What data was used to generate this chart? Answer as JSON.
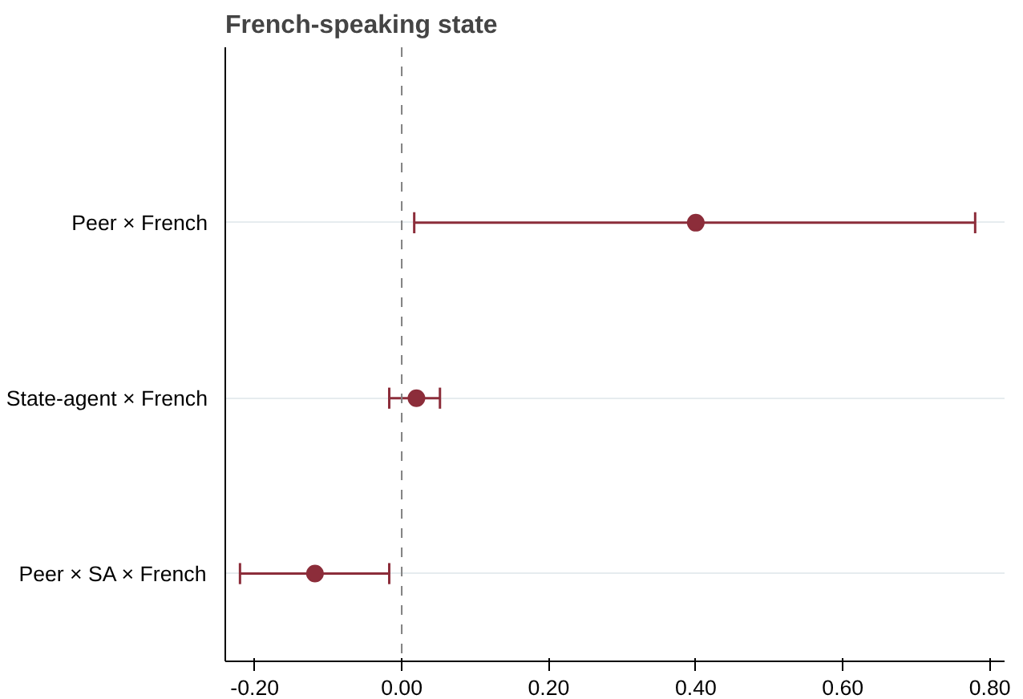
{
  "chart_data": {
    "type": "scatter",
    "orientation": "horizontal",
    "title": "French-speaking state",
    "categories": [
      "Peer × French",
      "State-agent × French",
      "Peer × SA × French"
    ],
    "series": [
      {
        "color": "#8c2d3a",
        "values": [
          0.4,
          0.02,
          -0.118
        ],
        "errors": [
          [
            0.017,
            0.78
          ],
          [
            -0.017,
            0.052
          ],
          [
            -0.22,
            -0.017
          ]
        ]
      }
    ],
    "xlim": [
      -0.24,
      0.82
    ],
    "xticks": [
      {
        "value": -0.2,
        "label": "-0.20"
      },
      {
        "value": 0,
        "label": "0.00"
      },
      {
        "value": 0.2,
        "label": "0.20"
      },
      {
        "value": 0.4,
        "label": "0.40"
      },
      {
        "value": 0.6,
        "label": "0.60"
      },
      {
        "value": 0.8,
        "label": "0.80"
      }
    ],
    "ref_lines": [
      {
        "axis": "x",
        "value": 0,
        "color": "#808080",
        "line_style": "dashed"
      }
    ],
    "grid": "y",
    "marker": "circle"
  }
}
